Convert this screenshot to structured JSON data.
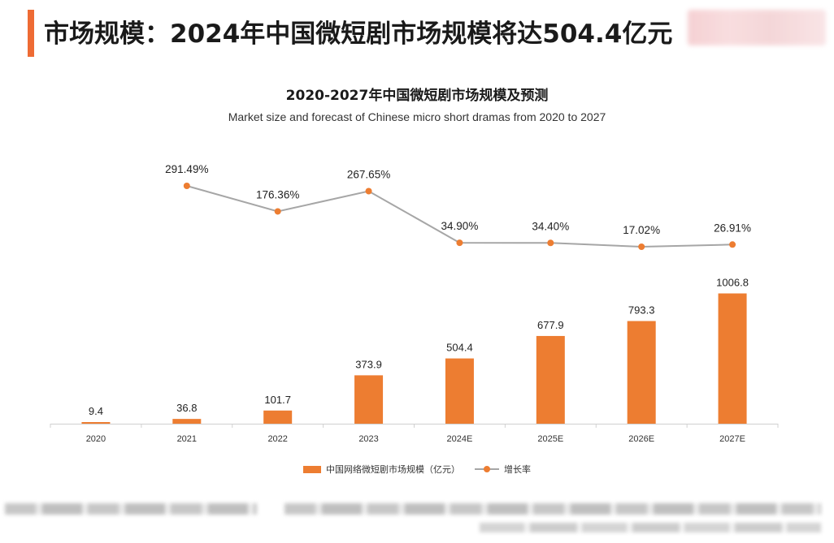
{
  "header": {
    "title": "市场规模：2024年中国微短剧市场规模将达504.4亿元",
    "accent_color": "#ee6b34"
  },
  "colors": {
    "bar": "#ed7d31",
    "line": "#a6a6a6",
    "marker": "#ed7d31"
  },
  "chart_data": {
    "type": "bar",
    "title": "2020-2027年中国微短剧市场规模及预测",
    "subtitle": "Market size and forecast of Chinese micro short dramas from 2020 to 2027",
    "categories": [
      "2020",
      "2021",
      "2022",
      "2023",
      "2024E",
      "2025E",
      "2026E",
      "2027E"
    ],
    "series": [
      {
        "name": "中国网络微短剧市场规模（亿元）",
        "type": "bar",
        "values": [
          9.4,
          36.8,
          101.7,
          373.9,
          504.4,
          677.9,
          793.3,
          1006.8
        ],
        "labels": [
          "9.4",
          "36.8",
          "101.7",
          "373.9",
          "504.4",
          "677.9",
          "793.3",
          "1006.8"
        ]
      },
      {
        "name": "增长率",
        "type": "line",
        "values": [
          null,
          291.49,
          176.36,
          267.65,
          34.9,
          34.4,
          17.02,
          26.91
        ],
        "labels": [
          null,
          "291.49%",
          "176.36%",
          "267.65%",
          "34.90%",
          "34.40%",
          "17.02%",
          "26.91%"
        ]
      }
    ],
    "ylim": [
      0,
      1010
    ],
    "ylim_rate": [
      0,
      300
    ],
    "legend_position": "bottom",
    "grid": false
  }
}
